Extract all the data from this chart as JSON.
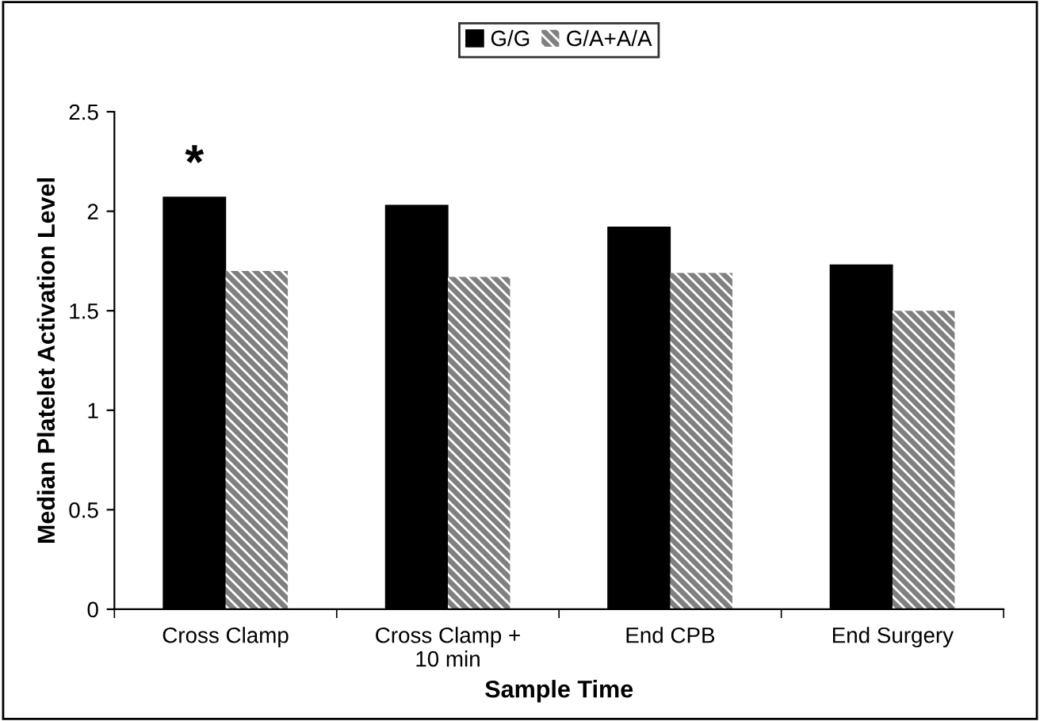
{
  "chart_data": {
    "type": "bar",
    "xlabel": "Sample Time",
    "ylabel": "Median Platelet Activation Level",
    "categories": [
      "Cross Clamp",
      "Cross Clamp +\n10 min",
      "End CPB",
      "End Surgery"
    ],
    "series": [
      {
        "name": "G/G",
        "color": "#000000",
        "values": [
          2.07,
          2.03,
          1.92,
          1.73
        ]
      },
      {
        "name": "G/A+A/A",
        "color": "#808080",
        "values": [
          1.7,
          1.67,
          1.69,
          1.5
        ]
      }
    ],
    "ylim": [
      0,
      2.5
    ],
    "yticks": [
      0,
      0.5,
      1,
      1.5,
      2,
      2.5
    ],
    "grid": false,
    "legend": "top",
    "annotations": [
      {
        "text": "*",
        "x": "Cross Clamp",
        "y": 2.07
      }
    ]
  }
}
